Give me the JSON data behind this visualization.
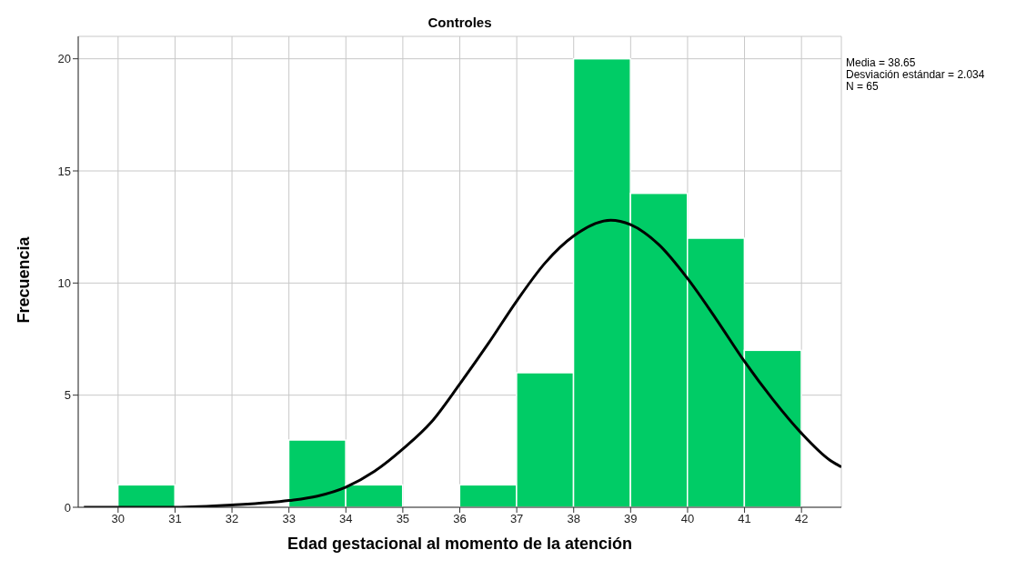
{
  "chart_data": {
    "type": "histogram",
    "title": "Controles",
    "xlabel": "Edad gestacional al momento de la atención",
    "ylabel": "Frecuencia",
    "bins": [
      30,
      31,
      32,
      33,
      34,
      35,
      36,
      37,
      38,
      39,
      40,
      41,
      42
    ],
    "values": [
      1,
      0,
      0,
      3,
      1,
      0,
      1,
      6,
      20,
      14,
      12,
      7
    ],
    "color": "#00cc66",
    "series": [
      {
        "type": "line",
        "color": "#000000",
        "marker": "none",
        "x": [
          29.4,
          30,
          31,
          32,
          33,
          33.5,
          34,
          34.5,
          35,
          35.5,
          36,
          36.5,
          37,
          37.5,
          38,
          38.65,
          39,
          39.5,
          40,
          40.5,
          41,
          41.5,
          42,
          42.5,
          42.7
        ],
        "values": [
          0,
          0,
          0,
          0.1,
          0.3,
          0.5,
          0.9,
          1.6,
          2.6,
          3.8,
          5.5,
          7.3,
          9.2,
          10.9,
          12.1,
          12.8,
          12.6,
          11.7,
          10.2,
          8.4,
          6.5,
          4.8,
          3.3,
          2.1,
          1.8
        ]
      }
    ],
    "xlim": [
      29.3,
      42.7
    ],
    "xticks": [
      30,
      31,
      32,
      33,
      34,
      35,
      36,
      37,
      38,
      39,
      40,
      41,
      42
    ],
    "ylim": [
      0,
      21
    ],
    "yticks": [
      0,
      5,
      10,
      15,
      20
    ],
    "grid": true,
    "annotations": [
      "Media = 38.65",
      "Desviación estándar = 2.034",
      "N = 65"
    ]
  }
}
